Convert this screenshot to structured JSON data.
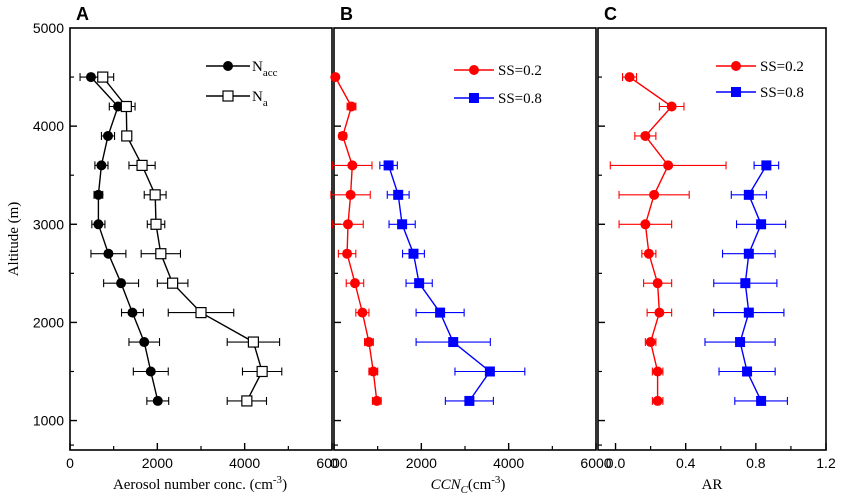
{
  "chart_data": [
    {
      "panel": "A",
      "type": "scatter",
      "xlabel": "Aerosol number conc. (cm",
      "xlabel_sup": "-3",
      "xlabel_tail": ")",
      "ylabel": "Altitude (m)",
      "xlim": [
        0,
        6000
      ],
      "ylim": [
        700,
        5000
      ],
      "x_ticks": [
        "0",
        "2000",
        "4000",
        "6000"
      ],
      "y_ticks": [
        "1000",
        "2000",
        "3000",
        "4000",
        "5000"
      ],
      "legend_position": "top-right",
      "series": [
        {
          "name": "N_acc",
          "legend_main": "N",
          "legend_sub": "acc",
          "marker": "filled-circle",
          "color": "#000000",
          "points": [
            {
              "y": 4500,
              "x": 480,
              "err": 250
            },
            {
              "y": 4200,
              "x": 1100,
              "err": 200
            },
            {
              "y": 3900,
              "x": 870,
              "err": 150
            },
            {
              "y": 3600,
              "x": 720,
              "err": 150
            },
            {
              "y": 3300,
              "x": 650,
              "err": 100
            },
            {
              "y": 3000,
              "x": 650,
              "err": 150
            },
            {
              "y": 2700,
              "x": 880,
              "err": 400
            },
            {
              "y": 2400,
              "x": 1170,
              "err": 400
            },
            {
              "y": 2100,
              "x": 1430,
              "err": 250
            },
            {
              "y": 1800,
              "x": 1700,
              "err": 350
            },
            {
              "y": 1500,
              "x": 1850,
              "err": 400
            },
            {
              "y": 1200,
              "x": 2010,
              "err": 250
            }
          ]
        },
        {
          "name": "N_a",
          "legend_main": "N",
          "legend_sub": "a",
          "marker": "open-square",
          "color": "#000000",
          "points": [
            {
              "y": 4500,
              "x": 750,
              "err": 250
            },
            {
              "y": 4200,
              "x": 1290,
              "err": 200
            },
            {
              "y": 3900,
              "x": 1300,
              "err": 100
            },
            {
              "y": 3600,
              "x": 1650,
              "err": 300
            },
            {
              "y": 3300,
              "x": 1950,
              "err": 250
            },
            {
              "y": 3000,
              "x": 1970,
              "err": 200
            },
            {
              "y": 2700,
              "x": 2080,
              "err": 450
            },
            {
              "y": 2400,
              "x": 2350,
              "err": 350
            },
            {
              "y": 2100,
              "x": 3000,
              "err": 750
            },
            {
              "y": 1800,
              "x": 4200,
              "err": 600
            },
            {
              "y": 1500,
              "x": 4400,
              "err": 450
            },
            {
              "y": 1200,
              "x": 4050,
              "err": 450
            }
          ]
        }
      ]
    },
    {
      "panel": "B",
      "type": "scatter",
      "xlabel": "CCN",
      "xlabel_sub": "C",
      "xlabel_paren": "(cm",
      "xlabel_sup": "-3",
      "xlabel_tail": ")",
      "xlim": [
        0,
        6000
      ],
      "ylim": [
        700,
        5000
      ],
      "x_ticks": [
        "0",
        "2000",
        "4000",
        "6000"
      ],
      "legend_position": "top-right",
      "series": [
        {
          "name": "SS=0.2",
          "marker": "filled-circle",
          "color": "#ff0000",
          "points": [
            {
              "y": 4500,
              "x": 30,
              "err": 0
            },
            {
              "y": 4200,
              "x": 400,
              "err": 100
            },
            {
              "y": 3900,
              "x": 200,
              "err": 80
            },
            {
              "y": 3600,
              "x": 420,
              "err": 450
            },
            {
              "y": 3300,
              "x": 380,
              "err": 450
            },
            {
              "y": 3000,
              "x": 320,
              "err": 350
            },
            {
              "y": 2700,
              "x": 300,
              "err": 200
            },
            {
              "y": 2400,
              "x": 480,
              "err": 200
            },
            {
              "y": 2100,
              "x": 650,
              "err": 150
            },
            {
              "y": 1800,
              "x": 800,
              "err": 100
            },
            {
              "y": 1500,
              "x": 900,
              "err": 100
            },
            {
              "y": 1200,
              "x": 980,
              "err": 100
            }
          ]
        },
        {
          "name": "SS=0.8",
          "marker": "filled-square",
          "color": "#0000ff",
          "points": [
            {
              "y": 3600,
              "x": 1250,
              "err": 200
            },
            {
              "y": 3300,
              "x": 1470,
              "err": 250
            },
            {
              "y": 3000,
              "x": 1560,
              "err": 300
            },
            {
              "y": 2700,
              "x": 1820,
              "err": 250
            },
            {
              "y": 2400,
              "x": 1950,
              "err": 300
            },
            {
              "y": 2100,
              "x": 2430,
              "err": 550
            },
            {
              "y": 1800,
              "x": 2730,
              "err": 850
            },
            {
              "y": 1500,
              "x": 3570,
              "err": 800
            },
            {
              "y": 1200,
              "x": 3100,
              "err": 550
            }
          ]
        }
      ]
    },
    {
      "panel": "C",
      "type": "scatter",
      "xlabel": "AR",
      "xlim": [
        -0.1,
        1.2
      ],
      "ylim": [
        700,
        5000
      ],
      "x_ticks": [
        "0.0",
        "0.4",
        "0.8",
        "1.2"
      ],
      "legend_position": "top-right",
      "series": [
        {
          "name": "SS=0.2",
          "marker": "filled-circle",
          "color": "#ff0000",
          "points": [
            {
              "y": 4500,
              "x": 0.08,
              "err": 0.04
            },
            {
              "y": 4200,
              "x": 0.32,
              "err": 0.07
            },
            {
              "y": 3900,
              "x": 0.17,
              "err": 0.06
            },
            {
              "y": 3600,
              "x": 0.3,
              "err": 0.33
            },
            {
              "y": 3300,
              "x": 0.22,
              "err": 0.2
            },
            {
              "y": 3000,
              "x": 0.17,
              "err": 0.15
            },
            {
              "y": 2700,
              "x": 0.19,
              "err": 0.04
            },
            {
              "y": 2400,
              "x": 0.24,
              "err": 0.08
            },
            {
              "y": 2100,
              "x": 0.25,
              "err": 0.07
            },
            {
              "y": 1800,
              "x": 0.2,
              "err": 0.03
            },
            {
              "y": 1500,
              "x": 0.24,
              "err": 0.03
            },
            {
              "y": 1200,
              "x": 0.24,
              "err": 0.03
            }
          ]
        },
        {
          "name": "SS=0.8",
          "marker": "filled-square",
          "color": "#0000ff",
          "points": [
            {
              "y": 3600,
              "x": 0.86,
              "err": 0.07
            },
            {
              "y": 3300,
              "x": 0.76,
              "err": 0.1
            },
            {
              "y": 3000,
              "x": 0.83,
              "err": 0.14
            },
            {
              "y": 2700,
              "x": 0.76,
              "err": 0.15
            },
            {
              "y": 2400,
              "x": 0.74,
              "err": 0.18
            },
            {
              "y": 2100,
              "x": 0.76,
              "err": 0.2
            },
            {
              "y": 1800,
              "x": 0.71,
              "err": 0.2
            },
            {
              "y": 1500,
              "x": 0.75,
              "err": 0.16
            },
            {
              "y": 1200,
              "x": 0.83,
              "err": 0.15
            }
          ]
        }
      ]
    }
  ]
}
